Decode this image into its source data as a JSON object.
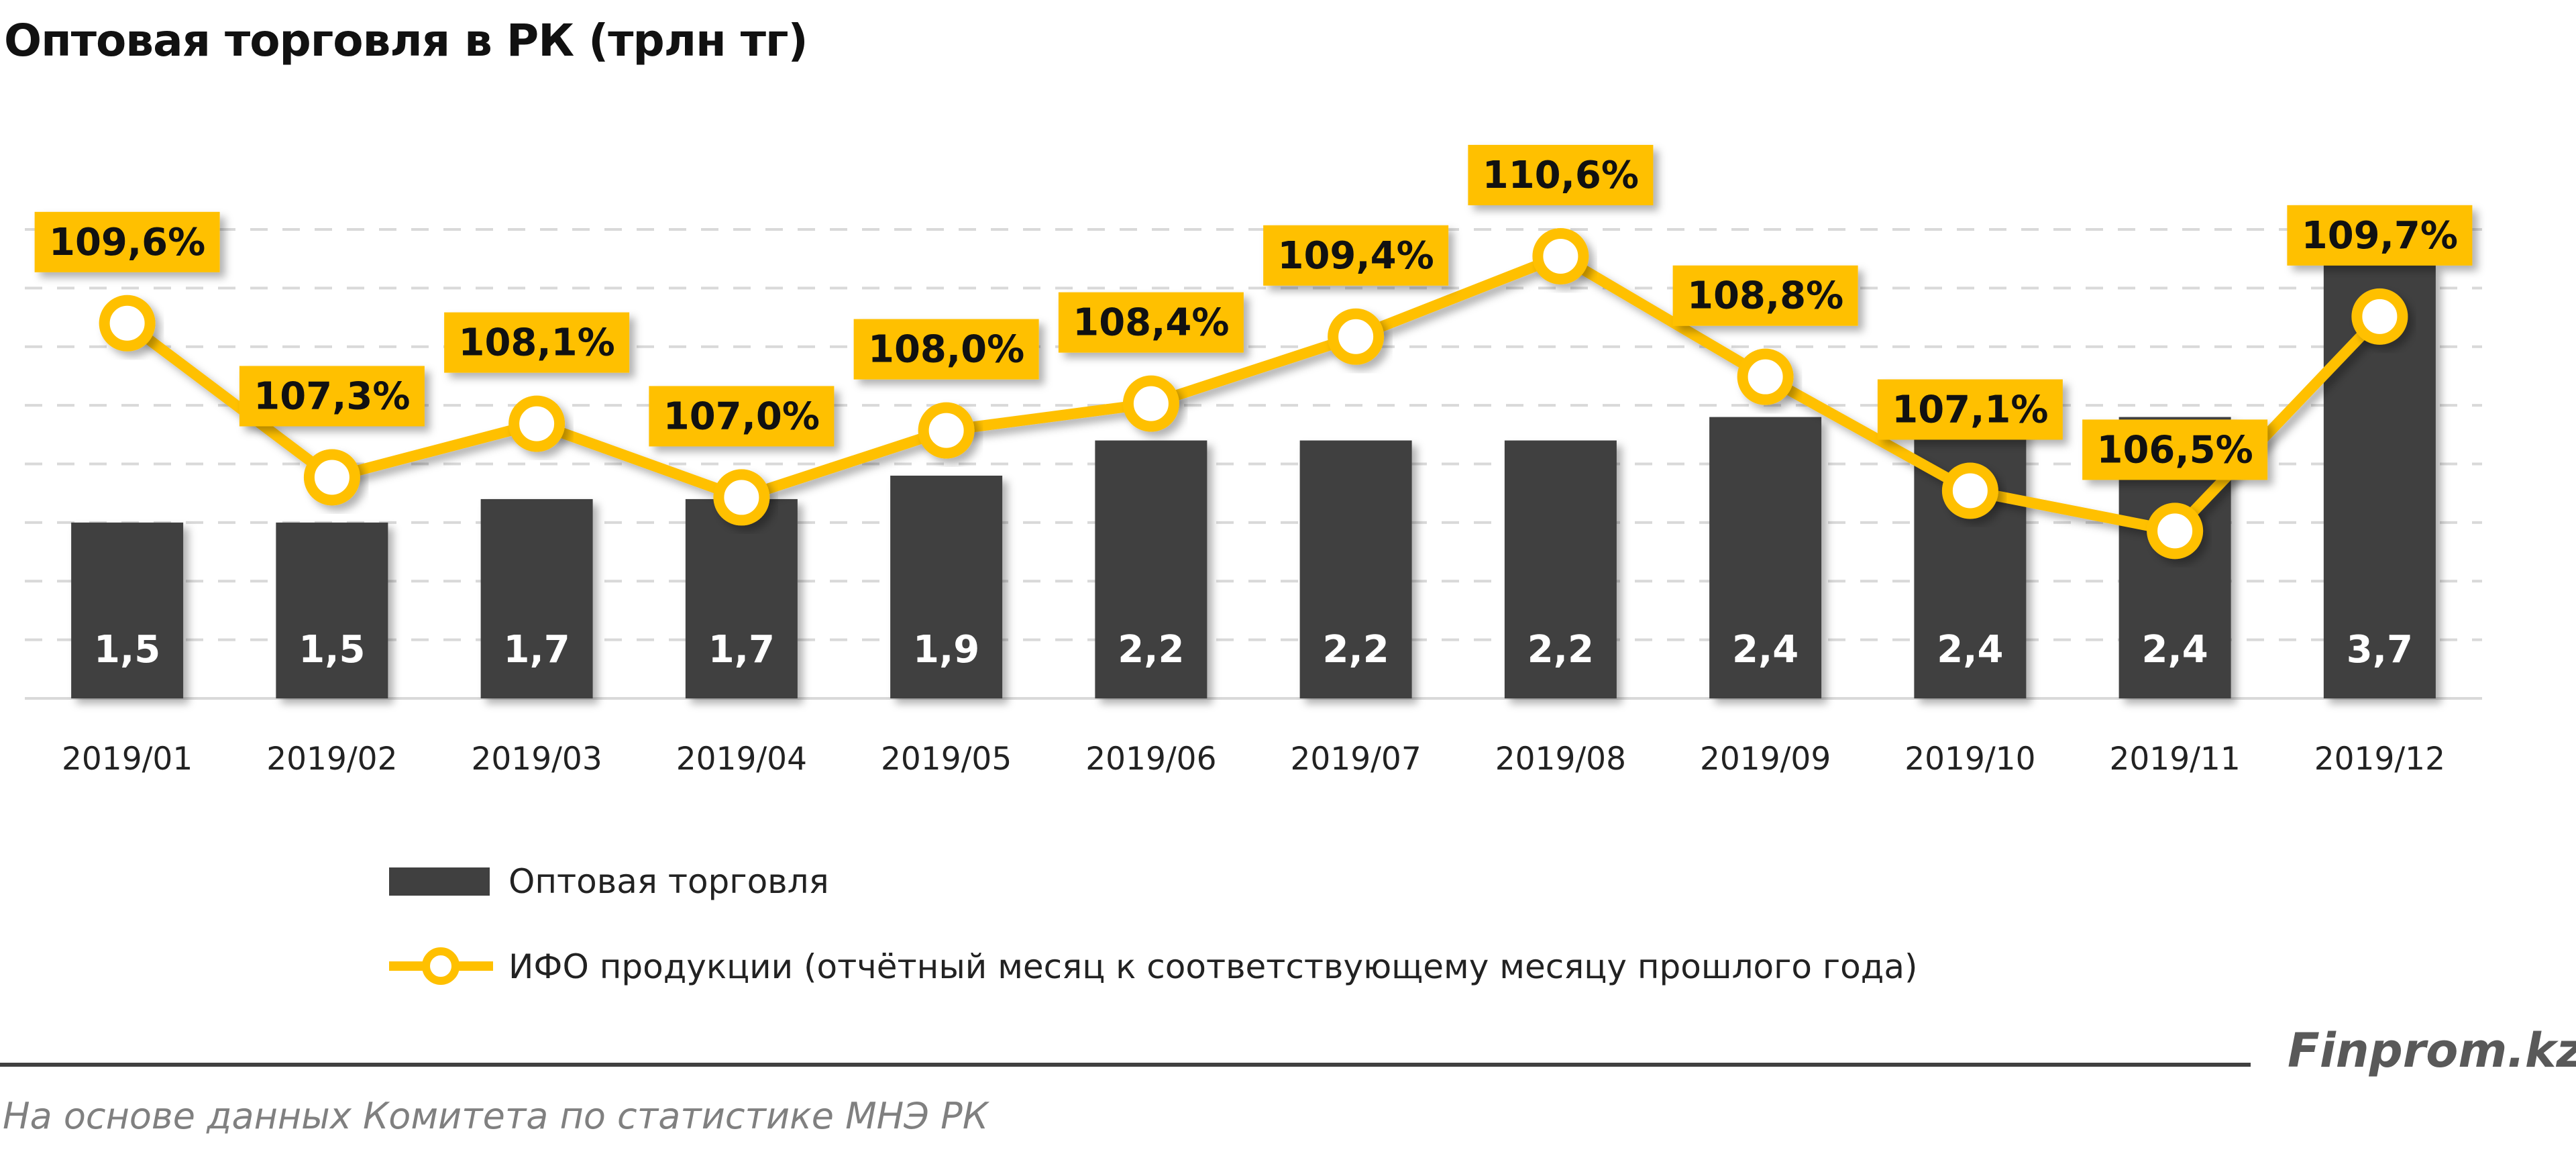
{
  "chart_data": {
    "type": "bar+line",
    "title": "Оптовая торговля в РК (трлн тг)",
    "categories": [
      "2019/01",
      "2019/02",
      "2019/03",
      "2019/04",
      "2019/05",
      "2019/06",
      "2019/07",
      "2019/08",
      "2019/09",
      "2019/10",
      "2019/11",
      "2019/12"
    ],
    "series": [
      {
        "name": "Оптовая торговля",
        "type": "bar",
        "color": "#404040",
        "values": [
          1.5,
          1.5,
          1.7,
          1.7,
          1.9,
          2.2,
          2.2,
          2.2,
          2.4,
          2.4,
          2.4,
          3.7
        ],
        "labels": [
          "1,5",
          "1,5",
          "1,7",
          "1,7",
          "1,9",
          "2,2",
          "2,2",
          "2,2",
          "2,4",
          "2,4",
          "2,4",
          "3,7"
        ]
      },
      {
        "name": "ИФО продукции  (отчётный месяц к соответствующему месяцу прошлого года)",
        "type": "line",
        "color": "#FFC000",
        "values": [
          109.6,
          107.3,
          108.1,
          107.0,
          108.0,
          108.4,
          109.4,
          110.6,
          108.8,
          107.1,
          106.5,
          109.7
        ],
        "labels": [
          "109,6%",
          "107,3%",
          "108,1%",
          "107,0%",
          "108,0%",
          "108,4%",
          "109,4%",
          "110,6%",
          "108,8%",
          "107,1%",
          "106,5%",
          "109,7%"
        ]
      }
    ],
    "ylim": [
      0,
      4
    ],
    "y2lim": [
      104,
      111
    ],
    "grid": true,
    "legend": "bottom"
  },
  "footer": {
    "brand": "Finprom.kz",
    "source": "На основе данных  Комитета по статистике МНЭ РК"
  }
}
